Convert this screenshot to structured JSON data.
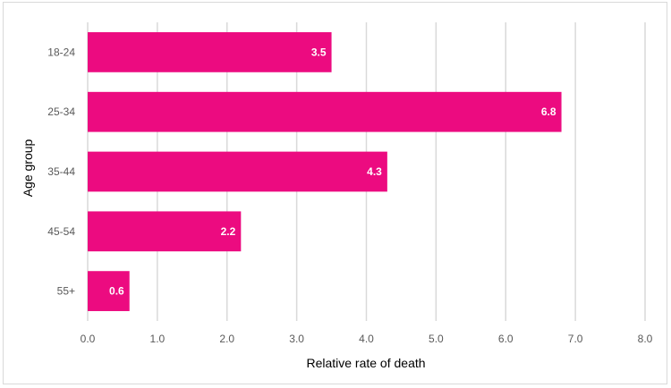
{
  "chart_data": {
    "type": "bar",
    "orientation": "horizontal",
    "title": "",
    "xlabel": "Relative rate of death",
    "ylabel": "Age group",
    "categories": [
      "18-24",
      "25-34",
      "35-44",
      "45-54",
      "55+"
    ],
    "values": [
      3.5,
      6.8,
      4.3,
      2.2,
      0.6
    ],
    "value_labels": [
      "3.5",
      "6.8",
      "4.3",
      "2.2",
      "0.6"
    ],
    "xlim": [
      0,
      8
    ],
    "x_ticks": [
      "0.0",
      "1.0",
      "2.0",
      "3.0",
      "4.0",
      "5.0",
      "6.0",
      "7.0",
      "8.0"
    ],
    "grid": "vertical",
    "legend": "none",
    "bar_color": "#EC0B80",
    "grid_color": "#D9D9D9"
  }
}
